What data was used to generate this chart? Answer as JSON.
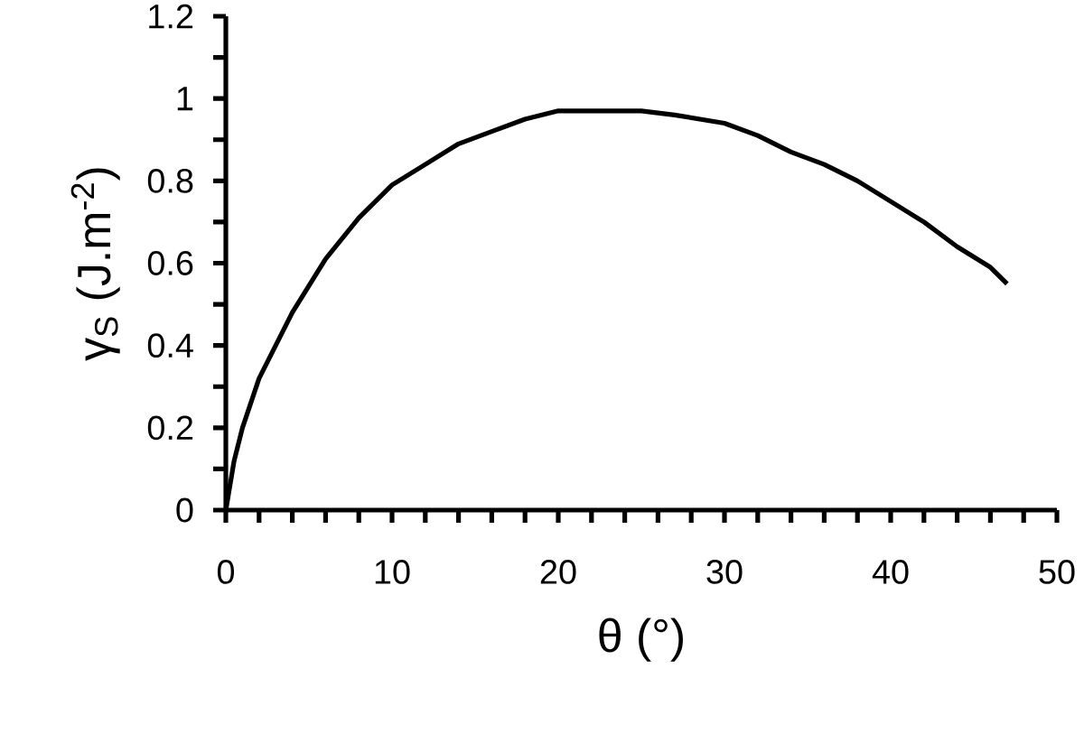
{
  "chart_data": {
    "type": "line",
    "xlabel": "θ (°)",
    "ylabel": "γ$_{S}$ (J.m$^{-2}$)",
    "x": [
      0,
      0.5,
      1,
      2,
      4,
      6,
      8,
      10,
      12,
      14,
      16,
      18,
      20,
      25,
      27,
      30,
      32,
      34,
      36,
      38,
      40,
      42,
      44,
      46,
      47
    ],
    "series": [
      {
        "color": "#000000",
        "values": [
          0,
          0.12,
          0.2,
          0.32,
          0.48,
          0.61,
          0.71,
          0.79,
          0.84,
          0.89,
          0.92,
          0.95,
          0.97,
          0.97,
          0.96,
          0.94,
          0.91,
          0.87,
          0.84,
          0.8,
          0.75,
          0.7,
          0.64,
          0.59,
          0.55
        ]
      }
    ],
    "xlim": [
      0,
      50
    ],
    "ylim": [
      0,
      1.2
    ],
    "xticks": [
      0,
      {
        "value": 2,
        "label": null
      },
      {
        "value": 4,
        "label": null
      },
      {
        "value": 6,
        "label": null
      },
      {
        "value": 8,
        "label": null
      },
      10,
      {
        "value": 12,
        "label": null
      },
      {
        "value": 14,
        "label": null
      },
      {
        "value": 16,
        "label": null
      },
      {
        "value": 18,
        "label": null
      },
      20,
      {
        "value": 22,
        "label": null
      },
      {
        "value": 24,
        "label": null
      },
      {
        "value": 26,
        "label": null
      },
      {
        "value": 28,
        "label": null
      },
      30,
      {
        "value": 32,
        "label": null
      },
      {
        "value": 34,
        "label": null
      },
      {
        "value": 36,
        "label": null
      },
      {
        "value": 38,
        "label": null
      },
      40,
      {
        "value": 42,
        "label": null
      },
      {
        "value": 44,
        "label": null
      },
      {
        "value": 46,
        "label": null
      },
      {
        "value": 48,
        "label": null
      },
      50
    ],
    "yticks": [
      0,
      {
        "value": 0.1,
        "label": null
      },
      0.2,
      {
        "value": 0.3,
        "label": null
      },
      0.4,
      {
        "value": 0.5,
        "label": null
      },
      0.6,
      {
        "value": 0.7,
        "label": null
      },
      0.8,
      {
        "value": 0.9,
        "label": null
      },
      1,
      {
        "value": 1.1,
        "label": null
      },
      1.2
    ]
  }
}
